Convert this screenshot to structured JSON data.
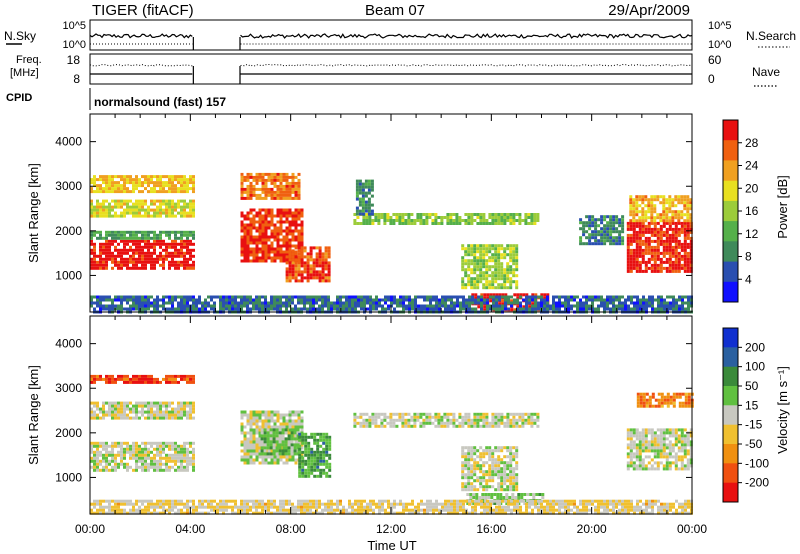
{
  "header": {
    "radar": "TIGER (fitACF)",
    "beam": "Beam 07",
    "date": "29/Apr/2009"
  },
  "params": {
    "nsky_label": "N.Sky",
    "nsky_ticks": [
      "10^5",
      "10^0"
    ],
    "nsearch_label": "N.Search",
    "nsearch_ticks": [
      "10^5",
      "10^0"
    ],
    "freq_label_1": "Freq.",
    "freq_label_2": "[MHz]",
    "freq_ticks": [
      "18",
      "8"
    ],
    "nave_label": "Nave",
    "nave_ticks": [
      "60",
      "0"
    ],
    "cpid_label": "CPID",
    "cpid_value": "normalsound (fast) 157"
  },
  "colors": {
    "power": [
      "#1010ff",
      "#2a4fb0",
      "#3f8a5a",
      "#55b04a",
      "#9ccc3a",
      "#e8e020",
      "#f0a020",
      "#f06010",
      "#e81010"
    ],
    "velocity": [
      "#1030d0",
      "#2a60a0",
      "#3a8a3a",
      "#60c040",
      "#c8c8c0",
      "#f0c030",
      "#f09010",
      "#f05010",
      "#e81010"
    ]
  },
  "chart_data": [
    {
      "type": "heatmap",
      "panel": "power",
      "ylabel": "Slant Range [km]",
      "xlabel": "Time UT",
      "xticks": [
        "00:00",
        "04:00",
        "08:00",
        "12:00",
        "16:00",
        "20:00",
        "00:00"
      ],
      "xlim_hours": [
        0,
        24
      ],
      "yticks": [
        1000,
        2000,
        3000,
        4000
      ],
      "ylim_km": [
        180,
        4620
      ],
      "colorbar_label": "Power [dB]",
      "colorbar_ticks": [
        4,
        8,
        12,
        16,
        20,
        24,
        28
      ],
      "colorbar_range": [
        0,
        30
      ],
      "regions": [
        {
          "t0": 0.0,
          "t1": 4.1,
          "r0": 1150,
          "r1": 1800,
          "v": 29
        },
        {
          "t0": 0.0,
          "t1": 4.1,
          "r0": 1850,
          "r1": 2000,
          "v": 10
        },
        {
          "t0": 0.0,
          "t1": 4.1,
          "r0": 2350,
          "r1": 2700,
          "v": 18
        },
        {
          "t0": 0.0,
          "t1": 4.1,
          "r0": 2900,
          "r1": 3250,
          "v": 20
        },
        {
          "t0": 6.0,
          "t1": 8.5,
          "r0": 1350,
          "r1": 2500,
          "v": 27
        },
        {
          "t0": 6.0,
          "t1": 8.3,
          "r0": 2700,
          "r1": 3300,
          "v": 24
        },
        {
          "t0": 7.8,
          "t1": 9.5,
          "r0": 850,
          "r1": 1650,
          "v": 26
        },
        {
          "t0": 10.5,
          "t1": 17.8,
          "r0": 2150,
          "r1": 2400,
          "v": 14
        },
        {
          "t0": 10.6,
          "t1": 11.2,
          "r0": 2400,
          "r1": 3150,
          "v": 8
        },
        {
          "t0": 14.8,
          "t1": 17.0,
          "r0": 750,
          "r1": 1700,
          "v": 15
        },
        {
          "t0": 15.2,
          "t1": 18.2,
          "r0": 250,
          "r1": 600,
          "v": 29
        },
        {
          "t0": 19.5,
          "t1": 21.2,
          "r0": 1700,
          "r1": 2350,
          "v": 8
        },
        {
          "t0": 21.4,
          "t1": 24.0,
          "r0": 1100,
          "r1": 2200,
          "v": 28
        },
        {
          "t0": 21.5,
          "t1": 24.0,
          "r0": 2200,
          "r1": 2800,
          "v": 21
        },
        {
          "t0": 0.0,
          "t1": 24.0,
          "r0": 200,
          "r1": 550,
          "v": 6
        }
      ]
    },
    {
      "type": "heatmap",
      "panel": "velocity",
      "ylabel": "Slant Range [km]",
      "xlabel": "Time UT",
      "xticks": [
        "00:00",
        "04:00",
        "08:00",
        "12:00",
        "16:00",
        "20:00",
        "00:00"
      ],
      "xlim_hours": [
        0,
        24
      ],
      "yticks": [
        1000,
        2000,
        3000,
        4000
      ],
      "ylim_km": [
        180,
        4620
      ],
      "colorbar_label": "Velocity [m s⁻¹]",
      "colorbar_ticks": [
        200,
        100,
        50,
        15,
        -15,
        -50,
        -100,
        -200
      ],
      "colorbar_range": [
        -250,
        250
      ],
      "regions": [
        {
          "t0": 0.0,
          "t1": 4.1,
          "r0": 1150,
          "r1": 1800,
          "v": 0
        },
        {
          "t0": 0.0,
          "t1": 4.1,
          "r0": 2300,
          "r1": 2700,
          "v": 0
        },
        {
          "t0": 0.0,
          "t1": 4.1,
          "r0": 3100,
          "r1": 3300,
          "v": -180
        },
        {
          "t0": 6.0,
          "t1": 8.5,
          "r0": 1350,
          "r1": 2500,
          "v": 0
        },
        {
          "t0": 6.8,
          "t1": 8.3,
          "r0": 1500,
          "r1": 2100,
          "v": 60
        },
        {
          "t0": 8.3,
          "t1": 9.6,
          "r0": 1050,
          "r1": 2000,
          "v": 90
        },
        {
          "t0": 10.5,
          "t1": 17.8,
          "r0": 2150,
          "r1": 2450,
          "v": 0
        },
        {
          "t0": 14.8,
          "t1": 17.0,
          "r0": 700,
          "r1": 1700,
          "v": 0
        },
        {
          "t0": 15.0,
          "t1": 18.0,
          "r0": 400,
          "r1": 650,
          "v": 40
        },
        {
          "t0": 21.4,
          "t1": 24.0,
          "r0": 1200,
          "r1": 2100,
          "v": 0
        },
        {
          "t0": 21.8,
          "t1": 24.0,
          "r0": 2600,
          "r1": 2900,
          "v": -130
        },
        {
          "t0": 0.0,
          "t1": 24.0,
          "r0": 200,
          "r1": 500,
          "v": -30
        }
      ]
    }
  ]
}
